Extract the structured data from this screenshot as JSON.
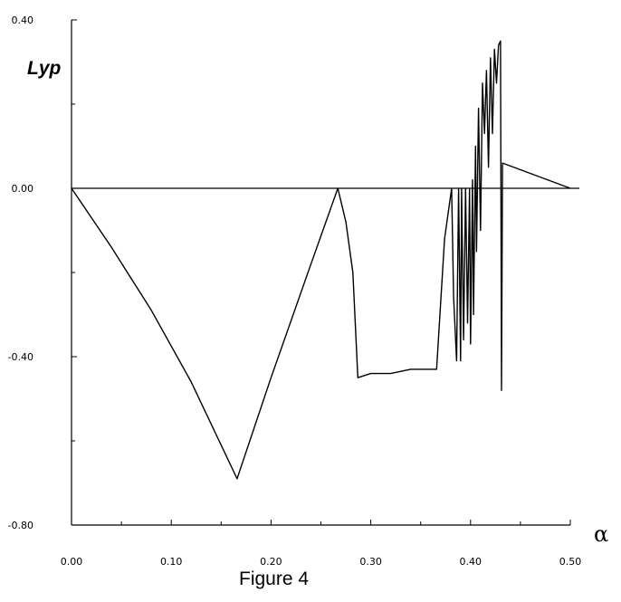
{
  "chart_data": {
    "type": "line",
    "title": "",
    "caption": "Figure 4",
    "xlabel": "α",
    "ylabel": "Lyp",
    "xlim": [
      0,
      0.5
    ],
    "ylim": [
      -0.8,
      0.4
    ],
    "grid": false,
    "x_ticks": [
      {
        "value": 0.0,
        "label": "0.00"
      },
      {
        "value": 0.1,
        "label": "0.10"
      },
      {
        "value": 0.2,
        "label": "0.20"
      },
      {
        "value": 0.3,
        "label": "0.30"
      },
      {
        "value": 0.4,
        "label": "0.40"
      },
      {
        "value": 0.5,
        "label": "0.50"
      }
    ],
    "y_ticks": [
      {
        "value": 0.4,
        "label": "0.40"
      },
      {
        "value": 0.0,
        "label": "0.00"
      },
      {
        "value": -0.4,
        "label": "-0.40"
      },
      {
        "value": -0.8,
        "label": "-0.80"
      }
    ],
    "reference_line": {
      "y": 0.0,
      "x_range": [
        0,
        0.5
      ]
    },
    "series": [
      {
        "color": "#000000",
        "x": [
          0.0,
          0.04,
          0.08,
          0.12,
          0.166,
          0.2,
          0.24,
          0.267,
          0.275,
          0.282,
          0.287,
          0.3,
          0.32,
          0.34,
          0.366,
          0.374,
          0.381,
          0.383,
          0.386,
          0.388,
          0.39,
          0.391,
          0.393,
          0.395,
          0.397,
          0.399,
          0.4,
          0.402,
          0.403,
          0.405,
          0.406,
          0.408,
          0.41,
          0.412,
          0.414,
          0.416,
          0.418,
          0.42,
          0.422,
          0.424,
          0.426,
          0.428,
          0.43,
          0.431,
          0.432,
          0.5
        ],
        "y": [
          0.0,
          -0.14,
          -0.29,
          -0.46,
          -0.69,
          -0.45,
          -0.18,
          0.0,
          -0.08,
          -0.2,
          -0.45,
          -0.44,
          -0.44,
          -0.43,
          -0.43,
          -0.12,
          0.0,
          -0.26,
          -0.41,
          0.0,
          -0.41,
          0.0,
          -0.36,
          0.0,
          -0.32,
          0.0,
          -0.37,
          0.02,
          -0.3,
          0.1,
          -0.15,
          0.19,
          -0.1,
          0.25,
          0.13,
          0.28,
          0.05,
          0.31,
          0.13,
          0.33,
          0.25,
          0.34,
          0.35,
          -0.48,
          0.06,
          0.0
        ]
      }
    ]
  }
}
